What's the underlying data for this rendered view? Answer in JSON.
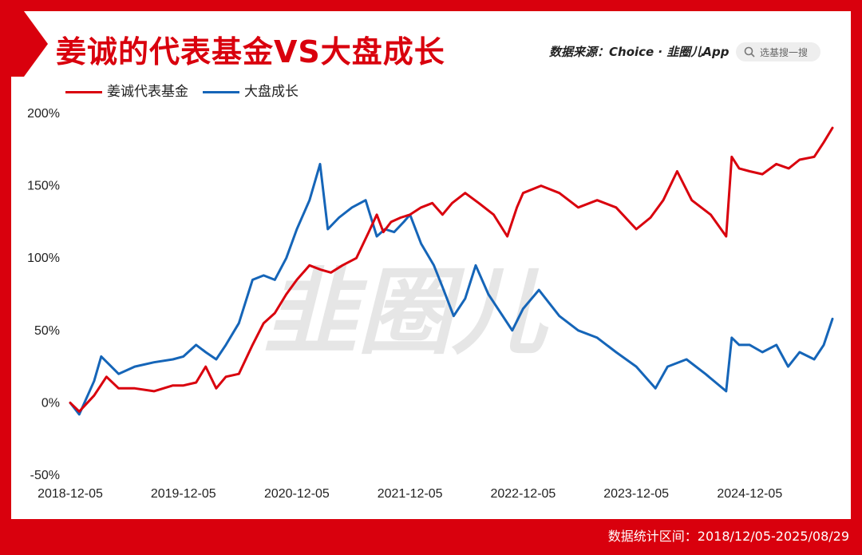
{
  "header": {
    "title": "姜诚的代表基金VS大盘成长",
    "source": "数据来源：Choice · 韭圈儿App",
    "search_placeholder": "选基搜一搜"
  },
  "footer": {
    "interval": "数据统计区间：2018/12/05-2025/08/29"
  },
  "watermark": "韭圈儿",
  "colors": {
    "frame": "#d9000d",
    "fund": "#d9000d",
    "index": "#1565b8"
  },
  "icons": {
    "search": "search-icon"
  },
  "chart_data": {
    "type": "line",
    "x_labels": [
      "2018-12-05",
      "2019-12-05",
      "2020-12-05",
      "2021-12-05",
      "2022-12-05",
      "2023-12-05",
      "2024-12-05"
    ],
    "x_range": [
      "2018-12-05",
      "2025-08-29"
    ],
    "y_ticks": [
      "200%",
      "150%",
      "100%",
      "50%",
      "0%",
      "-50%"
    ],
    "ylim": [
      -50,
      200
    ],
    "grid": false,
    "legend_position": "top-left",
    "series": [
      {
        "name": "姜诚代表基金",
        "color": "#d9000d",
        "points": [
          [
            "2018-12-05",
            0
          ],
          [
            "2019-01-03",
            -6
          ],
          [
            "2019-02-20",
            5
          ],
          [
            "2019-04-01",
            18
          ],
          [
            "2019-05-10",
            10
          ],
          [
            "2019-07-01",
            10
          ],
          [
            "2019-09-01",
            8
          ],
          [
            "2019-11-01",
            12
          ],
          [
            "2019-12-05",
            12
          ],
          [
            "2020-01-15",
            14
          ],
          [
            "2020-02-15",
            25
          ],
          [
            "2020-03-20",
            10
          ],
          [
            "2020-04-20",
            18
          ],
          [
            "2020-06-01",
            20
          ],
          [
            "2020-07-15",
            40
          ],
          [
            "2020-08-20",
            55
          ],
          [
            "2020-09-25",
            62
          ],
          [
            "2020-11-01",
            75
          ],
          [
            "2020-12-05",
            85
          ],
          [
            "2021-01-15",
            95
          ],
          [
            "2021-02-20",
            92
          ],
          [
            "2021-03-25",
            90
          ],
          [
            "2021-05-01",
            95
          ],
          [
            "2021-06-15",
            100
          ],
          [
            "2021-07-25",
            118
          ],
          [
            "2021-08-20",
            130
          ],
          [
            "2021-09-10",
            118
          ],
          [
            "2021-10-05",
            125
          ],
          [
            "2021-11-05",
            128
          ],
          [
            "2021-12-05",
            130
          ],
          [
            "2022-01-10",
            135
          ],
          [
            "2022-02-15",
            138
          ],
          [
            "2022-03-20",
            130
          ],
          [
            "2022-04-20",
            138
          ],
          [
            "2022-06-01",
            145
          ],
          [
            "2022-07-15",
            138
          ],
          [
            "2022-09-01",
            130
          ],
          [
            "2022-10-15",
            115
          ],
          [
            "2022-11-15",
            135
          ],
          [
            "2022-12-05",
            145
          ],
          [
            "2023-02-01",
            150
          ],
          [
            "2023-04-01",
            145
          ],
          [
            "2023-06-01",
            135
          ],
          [
            "2023-08-01",
            140
          ],
          [
            "2023-10-01",
            135
          ],
          [
            "2023-12-05",
            120
          ],
          [
            "2024-01-20",
            128
          ],
          [
            "2024-03-01",
            140
          ],
          [
            "2024-04-15",
            160
          ],
          [
            "2024-06-01",
            140
          ],
          [
            "2024-08-01",
            130
          ],
          [
            "2024-09-20",
            115
          ],
          [
            "2024-10-08",
            170
          ],
          [
            "2024-11-01",
            162
          ],
          [
            "2024-12-05",
            160
          ],
          [
            "2025-01-15",
            158
          ],
          [
            "2025-03-01",
            165
          ],
          [
            "2025-04-10",
            162
          ],
          [
            "2025-05-15",
            168
          ],
          [
            "2025-07-01",
            170
          ],
          [
            "2025-08-01",
            180
          ],
          [
            "2025-08-29",
            190
          ]
        ]
      },
      {
        "name": "大盘成长",
        "color": "#1565b8",
        "points": [
          [
            "2018-12-05",
            0
          ],
          [
            "2019-01-03",
            -8
          ],
          [
            "2019-02-20",
            15
          ],
          [
            "2019-03-15",
            32
          ],
          [
            "2019-05-10",
            20
          ],
          [
            "2019-07-01",
            25
          ],
          [
            "2019-09-01",
            28
          ],
          [
            "2019-11-01",
            30
          ],
          [
            "2019-12-05",
            32
          ],
          [
            "2020-01-15",
            40
          ],
          [
            "2020-02-15",
            35
          ],
          [
            "2020-03-20",
            30
          ],
          [
            "2020-04-20",
            40
          ],
          [
            "2020-06-01",
            55
          ],
          [
            "2020-07-15",
            85
          ],
          [
            "2020-08-20",
            88
          ],
          [
            "2020-09-25",
            85
          ],
          [
            "2020-11-01",
            100
          ],
          [
            "2020-12-05",
            120
          ],
          [
            "2021-01-15",
            140
          ],
          [
            "2021-02-18",
            165
          ],
          [
            "2021-03-15",
            120
          ],
          [
            "2021-04-20",
            128
          ],
          [
            "2021-06-01",
            135
          ],
          [
            "2021-07-15",
            140
          ],
          [
            "2021-08-20",
            115
          ],
          [
            "2021-09-15",
            120
          ],
          [
            "2021-10-15",
            118
          ],
          [
            "2021-11-15",
            125
          ],
          [
            "2021-12-05",
            130
          ],
          [
            "2022-01-10",
            110
          ],
          [
            "2022-02-20",
            95
          ],
          [
            "2022-03-20",
            80
          ],
          [
            "2022-04-25",
            60
          ],
          [
            "2022-06-01",
            72
          ],
          [
            "2022-07-05",
            95
          ],
          [
            "2022-08-15",
            75
          ],
          [
            "2022-10-31",
            50
          ],
          [
            "2022-12-05",
            65
          ],
          [
            "2023-01-25",
            78
          ],
          [
            "2023-04-01",
            60
          ],
          [
            "2023-06-01",
            50
          ],
          [
            "2023-08-01",
            45
          ],
          [
            "2023-10-01",
            35
          ],
          [
            "2023-12-05",
            25
          ],
          [
            "2024-02-05",
            10
          ],
          [
            "2024-03-15",
            25
          ],
          [
            "2024-05-15",
            30
          ],
          [
            "2024-07-15",
            20
          ],
          [
            "2024-09-20",
            8
          ],
          [
            "2024-10-08",
            45
          ],
          [
            "2024-11-01",
            40
          ],
          [
            "2024-12-05",
            40
          ],
          [
            "2025-01-15",
            35
          ],
          [
            "2025-03-01",
            40
          ],
          [
            "2025-04-08",
            25
          ],
          [
            "2025-05-15",
            35
          ],
          [
            "2025-07-01",
            30
          ],
          [
            "2025-08-01",
            40
          ],
          [
            "2025-08-29",
            58
          ]
        ]
      }
    ]
  }
}
